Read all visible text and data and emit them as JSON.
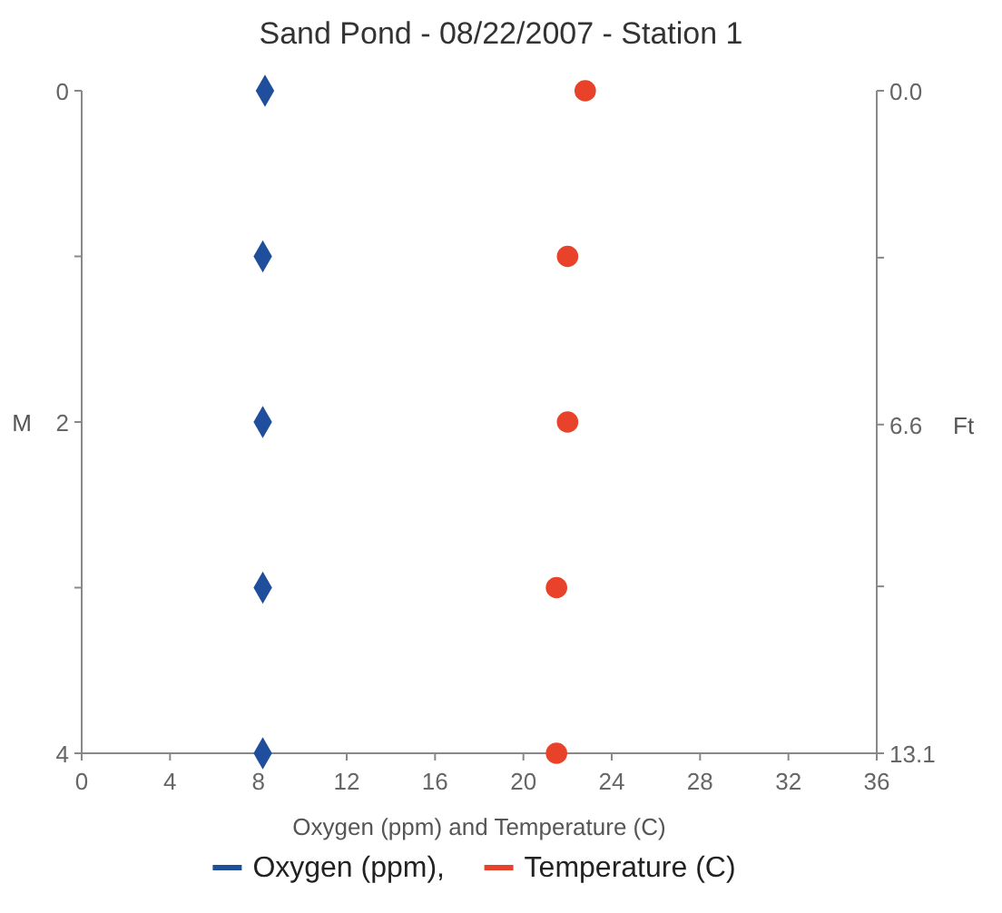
{
  "chart_data": {
    "type": "scatter",
    "title": "Sand Pond - 08/22/2007 - Station 1",
    "xlabel": "Oxygen (ppm) and Temperature (C)",
    "ylabel": "M",
    "y2label": "Ft",
    "xlim": [
      0,
      36
    ],
    "xticks": [
      0,
      4,
      8,
      12,
      16,
      20,
      24,
      28,
      32,
      36
    ],
    "ylim": [
      4,
      0
    ],
    "yticks": [
      0,
      {
        "value": 1,
        "label": null
      },
      2,
      {
        "value": 3,
        "label": null
      },
      4
    ],
    "y2lim": [
      13.1,
      0
    ],
    "y2ticks": [
      {
        "value": 0,
        "label": "0.0"
      },
      {
        "value": 3.3,
        "label": null
      },
      6.6,
      {
        "value": 9.8,
        "label": null
      },
      13.1
    ],
    "legend": "bottom",
    "series": [
      {
        "name": "Oxygen (ppm),",
        "color": "#1f4e9c",
        "marker": "diamond",
        "x": [
          8.3,
          8.2,
          8.2,
          8.2,
          8.2
        ],
        "values": [
          0,
          1,
          2,
          3,
          4
        ]
      },
      {
        "name": "Temperature (C)",
        "color": "#e8432a",
        "marker": "circle",
        "x": [
          22.8,
          22.0,
          22.0,
          21.5,
          21.5
        ],
        "values": [
          0,
          1,
          2,
          3,
          4
        ]
      }
    ]
  }
}
